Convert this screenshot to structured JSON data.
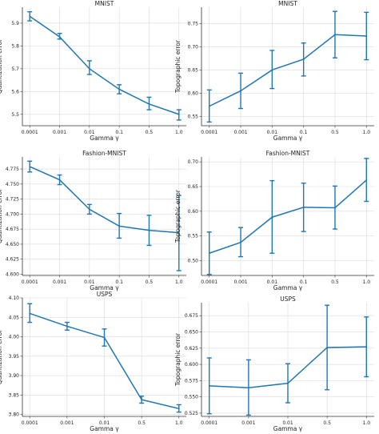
{
  "style": {
    "line_color": "#1f77b4",
    "grid_color": "#d9d9d9",
    "spine_color": "#333333"
  },
  "chart_data": [
    {
      "type": "line",
      "title": "MNIST",
      "xlabel": "Gamma γ",
      "ylabel": "Quantization error",
      "categories": [
        "0.0001",
        "0.001",
        "0.01",
        "0.1",
        "0.5",
        "1.0"
      ],
      "values": [
        5.93,
        5.84,
        5.7,
        5.61,
        5.545,
        5.5
      ],
      "error_low": [
        5.91,
        5.83,
        5.675,
        5.59,
        5.52,
        5.475
      ],
      "error_high": [
        5.95,
        5.855,
        5.735,
        5.63,
        5.575,
        5.52
      ],
      "ylim": [
        5.45,
        5.97
      ],
      "yticks": [
        5.5,
        5.6,
        5.7,
        5.8,
        5.9
      ],
      "ytick_labels": [
        "5.5",
        "5.6",
        "5.7",
        "5.8",
        "5.9"
      ],
      "grid": true
    },
    {
      "type": "line",
      "title": "MNIST",
      "xlabel": "Gamma γ",
      "ylabel": "Topographic error",
      "categories": [
        "0.0001",
        "0.001",
        "0.01",
        "0.1",
        "0.5",
        "1.0"
      ],
      "values": [
        0.572,
        0.605,
        0.65,
        0.673,
        0.726,
        0.723
      ],
      "error_low": [
        0.538,
        0.567,
        0.61,
        0.637,
        0.676,
        0.672
      ],
      "error_high": [
        0.607,
        0.643,
        0.692,
        0.708,
        0.776,
        0.774
      ],
      "ylim": [
        0.53,
        0.785
      ],
      "yticks": [
        0.55,
        0.6,
        0.65,
        0.7,
        0.75
      ],
      "ytick_labels": [
        "0.55",
        "0.60",
        "0.65",
        "0.70",
        "0.75"
      ],
      "grid": true
    },
    {
      "type": "line",
      "title": "Fashion-MNIST",
      "xlabel": "Gamma γ",
      "ylabel": "Quantization error",
      "categories": [
        "0.0001",
        "0.001",
        "0.01",
        "0.1",
        "0.5",
        "1.0"
      ],
      "values": [
        4.779,
        4.757,
        4.708,
        4.68,
        4.673,
        4.669
      ],
      "error_low": [
        4.77,
        4.749,
        4.7,
        4.66,
        4.648,
        4.606
      ],
      "error_high": [
        4.788,
        4.765,
        4.716,
        4.701,
        4.698,
        4.731
      ],
      "ylim": [
        4.598,
        4.795
      ],
      "yticks": [
        4.6,
        4.625,
        4.65,
        4.675,
        4.7,
        4.725,
        4.75,
        4.775
      ],
      "ytick_labels": [
        "4.600",
        "4.625",
        "4.650",
        "4.675",
        "4.700",
        "4.725",
        "4.750",
        "4.775"
      ],
      "grid": true
    },
    {
      "type": "line",
      "title": "Fashion-MNIST",
      "xlabel": "Gamma γ",
      "ylabel": "Topographic error",
      "categories": [
        "0.0001",
        "0.001",
        "0.01",
        "0.1",
        "0.5",
        "1.0"
      ],
      "values": [
        0.515,
        0.537,
        0.588,
        0.608,
        0.607,
        0.663
      ],
      "error_low": [
        0.472,
        0.508,
        0.515,
        0.559,
        0.564,
        0.62
      ],
      "error_high": [
        0.558,
        0.567,
        0.662,
        0.657,
        0.651,
        0.707
      ],
      "ylim": [
        0.47,
        0.71
      ],
      "yticks": [
        0.5,
        0.55,
        0.6,
        0.65,
        0.7
      ],
      "ytick_labels": [
        "0.50",
        "0.55",
        "0.60",
        "0.65",
        "0.70"
      ],
      "grid": true
    },
    {
      "type": "line",
      "title": "USPS",
      "xlabel": "Gamma γ",
      "ylabel": "Quantization error",
      "categories": [
        "0.0001",
        "0.001",
        "0.01",
        "0.5",
        "1.0"
      ],
      "values": [
        4.06,
        4.027,
        3.998,
        3.838,
        3.815
      ],
      "error_low": [
        4.037,
        4.017,
        3.976,
        3.829,
        3.806
      ],
      "error_high": [
        4.085,
        4.037,
        4.02,
        3.847,
        3.825
      ],
      "ylim": [
        3.795,
        4.1
      ],
      "yticks": [
        3.8,
        3.85,
        3.9,
        3.95,
        4.0,
        4.05,
        4.1
      ],
      "ytick_labels": [
        "3.80",
        "3.85",
        "3.90",
        "3.95",
        "4.00",
        "4.05",
        "4.10"
      ],
      "grid": true
    },
    {
      "type": "line",
      "title": "USPS",
      "xlabel": "Gamma γ",
      "ylabel": "Topographic error",
      "categories": [
        "0.0001",
        "0.001",
        "0.01",
        "0.5",
        "1.0"
      ],
      "values": [
        0.567,
        0.564,
        0.571,
        0.626,
        0.627
      ],
      "error_low": [
        0.524,
        0.522,
        0.541,
        0.561,
        0.581
      ],
      "error_high": [
        0.61,
        0.607,
        0.601,
        0.691,
        0.673
      ],
      "ylim": [
        0.52,
        0.695
      ],
      "yticks": [
        0.525,
        0.55,
        0.575,
        0.6,
        0.625,
        0.65,
        0.675
      ],
      "ytick_labels": [
        "0.525",
        "0.550",
        "0.575",
        "0.600",
        "0.625",
        "0.650",
        "0.675"
      ],
      "grid": true
    }
  ]
}
